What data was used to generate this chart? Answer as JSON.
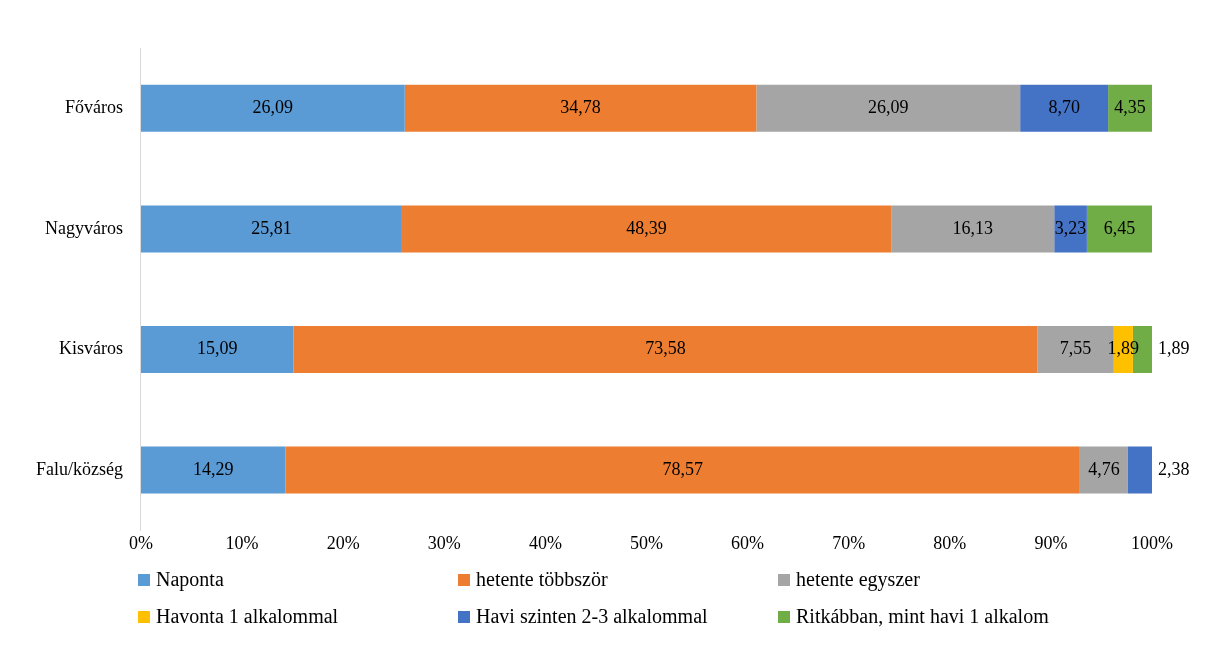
{
  "chart_data": {
    "type": "bar",
    "orientation": "horizontal",
    "stacked": true,
    "categories": [
      "Főváros",
      "Nagyváros",
      "Kisváros",
      "Falu/község"
    ],
    "series": [
      {
        "name": "Naponta",
        "color": "#5b9bd5",
        "values": [
          26.09,
          25.81,
          15.09,
          14.29
        ],
        "value_labels": [
          "26,09",
          "25,81",
          "15,09",
          "14,29"
        ]
      },
      {
        "name": "hetente többször",
        "color": "#ed7d31",
        "values": [
          34.78,
          48.39,
          73.58,
          78.57
        ],
        "value_labels": [
          "34,78",
          "48,39",
          "73,58",
          "78,57"
        ]
      },
      {
        "name": "hetente egyszer",
        "color": "#a5a5a5",
        "values": [
          26.09,
          16.13,
          7.55,
          4.76
        ],
        "value_labels": [
          "26,09",
          "16,13",
          "7,55",
          "4,76"
        ]
      },
      {
        "name": "Havonta 1 alkalommal",
        "color": "#ffc000",
        "values": [
          null,
          null,
          1.89,
          null
        ],
        "value_labels": [
          null,
          null,
          "1,89",
          null
        ]
      },
      {
        "name": "Havi szinten 2-3 alkalommal",
        "color": "#4472c4",
        "values": [
          8.7,
          3.23,
          null,
          2.38
        ],
        "value_labels": [
          "8,70",
          "3,23",
          null,
          "2,38"
        ]
      },
      {
        "name": "Ritkábban, mint havi 1 alkalom",
        "color": "#70ad47",
        "values": [
          4.35,
          6.45,
          1.89,
          null
        ],
        "value_labels": [
          "4,35",
          "6,45",
          "1,89",
          null
        ]
      }
    ],
    "xlim": [
      0,
      100
    ],
    "xticks": [
      {
        "value": 0,
        "label": "0%"
      },
      {
        "value": 10,
        "label": "10%"
      },
      {
        "value": 20,
        "label": "20%"
      },
      {
        "value": 30,
        "label": "30%"
      },
      {
        "value": 40,
        "label": "40%"
      },
      {
        "value": 50,
        "label": "50%"
      },
      {
        "value": 60,
        "label": "60%"
      },
      {
        "value": 70,
        "label": "70%"
      },
      {
        "value": 80,
        "label": "80%"
      },
      {
        "value": 90,
        "label": "90%"
      },
      {
        "value": 100,
        "label": "100%"
      }
    ],
    "grid": false,
    "legend": "bottom"
  }
}
